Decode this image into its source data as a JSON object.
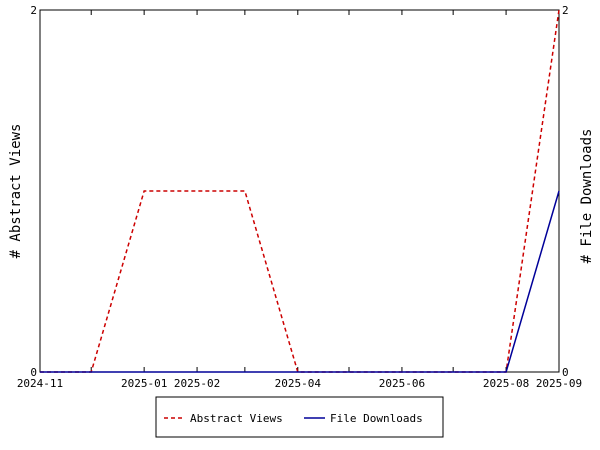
{
  "chart_data": {
    "type": "line",
    "x_type": "date",
    "xlim": [
      "2024-11-01",
      "2025-09-01"
    ],
    "x_ticks": [
      "2024-11",
      "2025-01",
      "2025-02",
      "2025-04",
      "2025-06",
      "2025-08",
      "2025-09"
    ],
    "x_minor_ticks": [
      "2024-12-01",
      "2025-03-01",
      "2025-05-01",
      "2025-07-01"
    ],
    "y_left": {
      "label": "# Abstract Views",
      "ylim": [
        0,
        2
      ],
      "ticks": [
        "0",
        "2"
      ]
    },
    "y_right": {
      "label": "# File Downloads",
      "ylim": [
        0,
        2
      ],
      "ticks": [
        "0",
        "2"
      ]
    },
    "series": [
      {
        "name": "Abstract Views",
        "axis": "left",
        "color": "#cc0000",
        "style": "dashed",
        "points": [
          {
            "x": "2024-11-01",
            "y": 0
          },
          {
            "x": "2024-12-01",
            "y": 0
          },
          {
            "x": "2025-01-01",
            "y": 1
          },
          {
            "x": "2025-02-01",
            "y": 1
          },
          {
            "x": "2025-03-01",
            "y": 1
          },
          {
            "x": "2025-04-01",
            "y": 0
          },
          {
            "x": "2025-05-01",
            "y": 0
          },
          {
            "x": "2025-06-01",
            "y": 0
          },
          {
            "x": "2025-07-01",
            "y": 0
          },
          {
            "x": "2025-08-01",
            "y": 0
          },
          {
            "x": "2025-09-01",
            "y": 2
          }
        ]
      },
      {
        "name": "File Downloads",
        "axis": "right",
        "color": "#000099",
        "style": "solid",
        "points": [
          {
            "x": "2024-11-01",
            "y": 0
          },
          {
            "x": "2024-12-01",
            "y": 0
          },
          {
            "x": "2025-01-01",
            "y": 0
          },
          {
            "x": "2025-02-01",
            "y": 0
          },
          {
            "x": "2025-03-01",
            "y": 0
          },
          {
            "x": "2025-04-01",
            "y": 0
          },
          {
            "x": "2025-05-01",
            "y": 0
          },
          {
            "x": "2025-06-01",
            "y": 0
          },
          {
            "x": "2025-07-01",
            "y": 0
          },
          {
            "x": "2025-08-01",
            "y": 0
          },
          {
            "x": "2025-09-01",
            "y": 1
          }
        ]
      }
    ],
    "legend": {
      "position": "bottom-center",
      "entries": [
        "Abstract Views",
        "File Downloads"
      ]
    }
  }
}
